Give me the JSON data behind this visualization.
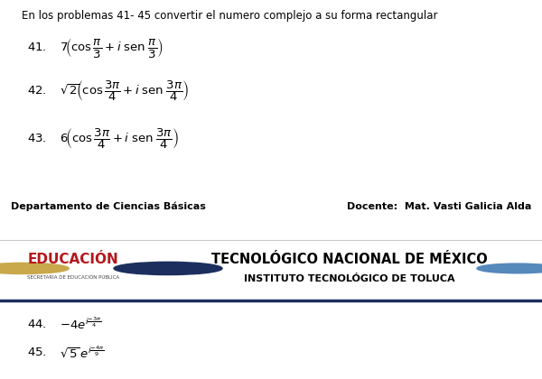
{
  "title_text": "En los problemas 41- 45 convertir el numero complejo a su forma rectangular",
  "footer_left": "Departamento de Ciencias Básicas",
  "footer_right": "Docente:  Mat. Vasti Galicia Alda",
  "banner_line1": "TECNOLÓGICO NACIONAL DE MÉXICO",
  "banner_line2": "INSTITUTO TECNOLÓGICO DE TOLUCA",
  "banner_edu": "EDUCACIÓN",
  "banner_edu_sub": "SECRETARÍA DE EDUCACIÓN PÚBLICA",
  "bg_color": "#ffffff",
  "dark_bar_color": "#1c2e5e",
  "banner_bg": "#f2f2f2",
  "title_fontsize": 8.5,
  "problem_fontsize": 9.5,
  "footer_fontsize": 8,
  "banner_title_fontsize": 11,
  "banner_sub_fontsize": 8,
  "edu_color": "#b5171b",
  "edu_fontsize": 11
}
